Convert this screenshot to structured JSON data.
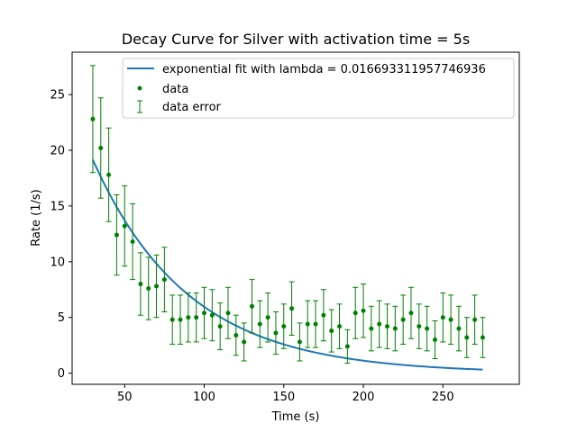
{
  "chart_data": {
    "type": "scatter",
    "title": "Decay Curve for Silver with activation time = 5s",
    "xlabel": "Time (s)",
    "ylabel": "Rate (1/s)",
    "xlim": [
      17,
      298
    ],
    "ylim": [
      -1.0,
      28.8
    ],
    "xticks": [
      50,
      100,
      150,
      200,
      250
    ],
    "yticks": [
      0,
      5,
      10,
      15,
      20,
      25
    ],
    "legend": {
      "placement": "top-right",
      "entries": [
        "exponential fit with lambda = 0.016693311957746936",
        "data",
        "data error"
      ]
    },
    "fit": {
      "name": "exponential fit with lambda = 0.016693311957746936",
      "lambda": 0.016693311957746936,
      "amplitude": 31.6,
      "x_start": 30,
      "x_end": 275,
      "color": "#1f77b4"
    },
    "data_series": {
      "name": "data",
      "color": "#008000",
      "x": [
        30,
        35,
        40,
        45,
        50,
        55,
        60,
        65,
        70,
        75,
        80,
        85,
        90,
        95,
        100,
        105,
        110,
        115,
        120,
        125,
        130,
        135,
        140,
        145,
        150,
        155,
        160,
        165,
        170,
        175,
        180,
        185,
        190,
        195,
        200,
        205,
        210,
        215,
        220,
        225,
        230,
        235,
        240,
        245,
        250,
        255,
        260,
        265,
        270,
        275
      ],
      "y": [
        22.8,
        20.2,
        17.8,
        12.4,
        13.2,
        11.8,
        8.0,
        7.6,
        7.8,
        8.4,
        4.8,
        4.8,
        5.0,
        5.0,
        5.4,
        5.2,
        4.2,
        5.4,
        3.4,
        2.8,
        6.0,
        4.4,
        5.0,
        3.6,
        4.2,
        5.8,
        2.8,
        4.4,
        4.4,
        5.2,
        3.8,
        4.2,
        2.4,
        5.4,
        5.6,
        4.0,
        4.4,
        4.2,
        4.0,
        4.8,
        5.4,
        4.2,
        4.0,
        3.0,
        5.0,
        4.8,
        4.0,
        3.2,
        4.8,
        3.2
      ],
      "yerr": [
        4.8,
        4.5,
        4.2,
        3.6,
        3.6,
        3.4,
        2.8,
        2.8,
        2.8,
        2.9,
        2.2,
        2.2,
        2.2,
        2.2,
        2.3,
        2.3,
        2.1,
        2.3,
        1.8,
        1.7,
        2.4,
        2.1,
        2.2,
        1.9,
        2.0,
        2.4,
        1.7,
        2.1,
        2.1,
        2.3,
        1.9,
        2.0,
        1.5,
        2.3,
        2.4,
        2.0,
        2.1,
        2.0,
        2.0,
        2.2,
        2.3,
        2.0,
        2.0,
        1.7,
        2.2,
        2.2,
        2.0,
        1.8,
        2.2,
        1.8
      ]
    }
  }
}
